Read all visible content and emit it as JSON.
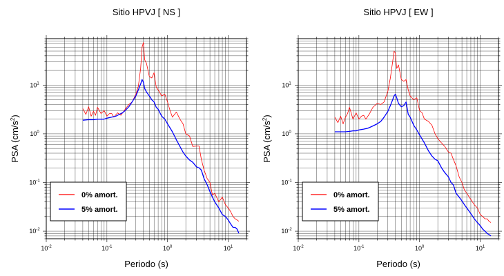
{
  "chart_data": [
    {
      "type": "line",
      "title": "Sitio HPVJ [ NS ]",
      "xlabel": "Periodo (s)",
      "ylabel_main": "PSA (cm/s",
      "ylabel_sup": "2",
      "ylabel_end": ")",
      "xscale": "log",
      "yscale": "log",
      "xlim": [
        0.01,
        20
      ],
      "ylim": [
        0.007,
        90
      ],
      "xticks": [
        {
          "base": "10",
          "exp": "-2",
          "v": 0.01
        },
        {
          "base": "10",
          "exp": "-1",
          "v": 0.1
        },
        {
          "base": "10",
          "exp": "0",
          "v": 1
        },
        {
          "base": "10",
          "exp": "1",
          "v": 10
        }
      ],
      "yticks": [
        {
          "base": "10",
          "exp": "-2",
          "v": 0.01
        },
        {
          "base": "10",
          "exp": "-1",
          "v": 0.1
        },
        {
          "base": "10",
          "exp": "0",
          "v": 1
        },
        {
          "base": "10",
          "exp": "1",
          "v": 10
        }
      ],
      "grid": true,
      "legend_position": "bottom-left",
      "series": [
        {
          "name": "0% amort.",
          "color": "#ff0000",
          "x": [
            0.04,
            0.045,
            0.05,
            0.055,
            0.06,
            0.065,
            0.07,
            0.08,
            0.09,
            0.1,
            0.11,
            0.12,
            0.13,
            0.15,
            0.17,
            0.2,
            0.23,
            0.26,
            0.3,
            0.33,
            0.36,
            0.38,
            0.4,
            0.42,
            0.45,
            0.5,
            0.55,
            0.6,
            0.65,
            0.7,
            0.8,
            0.9,
            1.0,
            1.1,
            1.2,
            1.4,
            1.6,
            1.8,
            2.0,
            2.3,
            2.6,
            3.0,
            3.3,
            3.6,
            4.0,
            4.5,
            5.0,
            5.5,
            6,
            7,
            8,
            9,
            10,
            11,
            12,
            13,
            14,
            15
          ],
          "y": [
            3.3,
            2.5,
            3.6,
            2.3,
            2.9,
            2.4,
            3.5,
            2.6,
            3.0,
            2.3,
            2.6,
            2.6,
            2.2,
            2.7,
            2.4,
            3.2,
            4.0,
            4.5,
            6.5,
            9.5,
            22,
            60,
            75,
            33,
            28,
            15,
            14,
            18,
            9,
            8,
            6,
            6.5,
            4.5,
            3.0,
            2.2,
            2.8,
            2.0,
            1.6,
            1.0,
            0.9,
            0.55,
            0.56,
            0.56,
            0.3,
            0.18,
            0.12,
            0.1,
            0.055,
            0.06,
            0.04,
            0.05,
            0.035,
            0.03,
            0.025,
            0.02,
            0.018,
            0.017,
            0.016
          ]
        },
        {
          "name": "5% amort.",
          "color": "#0000ff",
          "x": [
            0.04,
            0.05,
            0.06,
            0.07,
            0.08,
            0.09,
            0.1,
            0.12,
            0.14,
            0.16,
            0.18,
            0.2,
            0.23,
            0.26,
            0.3,
            0.33,
            0.36,
            0.38,
            0.4,
            0.42,
            0.45,
            0.5,
            0.55,
            0.6,
            0.65,
            0.7,
            0.8,
            0.9,
            1.0,
            1.2,
            1.4,
            1.6,
            1.8,
            2.0,
            2.3,
            2.6,
            3.0,
            3.3,
            3.6,
            4.0,
            4.5,
            5.0,
            5.5,
            6,
            7,
            8,
            9,
            10,
            11,
            12,
            13,
            14,
            15
          ],
          "y": [
            1.9,
            1.95,
            1.95,
            2.0,
            2.0,
            2.0,
            2.1,
            2.2,
            2.3,
            2.5,
            2.7,
            3.0,
            3.6,
            4.5,
            6.0,
            8.0,
            10.5,
            13,
            11.5,
            8.5,
            7.2,
            6.0,
            5.0,
            4.5,
            3.5,
            3.2,
            2.3,
            2.0,
            1.6,
            1.1,
            0.75,
            0.55,
            0.42,
            0.35,
            0.29,
            0.26,
            0.21,
            0.2,
            0.18,
            0.12,
            0.09,
            0.065,
            0.05,
            0.04,
            0.03,
            0.022,
            0.02,
            0.017,
            0.014,
            0.012,
            0.012,
            0.011,
            0.009
          ]
        }
      ]
    },
    {
      "type": "line",
      "title": "Sitio HPVJ [ EW ]",
      "xlabel": "Periodo (s)",
      "ylabel_main": "PSA (cm/s",
      "ylabel_sup": "2",
      "ylabel_end": ")",
      "xscale": "log",
      "yscale": "log",
      "xlim": [
        0.01,
        20
      ],
      "ylim": [
        0.007,
        90
      ],
      "xticks": [
        {
          "base": "10",
          "exp": "-2",
          "v": 0.01
        },
        {
          "base": "10",
          "exp": "-1",
          "v": 0.1
        },
        {
          "base": "10",
          "exp": "0",
          "v": 1
        },
        {
          "base": "10",
          "exp": "1",
          "v": 10
        }
      ],
      "yticks": [
        {
          "base": "10",
          "exp": "-2",
          "v": 0.01
        },
        {
          "base": "10",
          "exp": "-1",
          "v": 0.1
        },
        {
          "base": "10",
          "exp": "0",
          "v": 1
        },
        {
          "base": "10",
          "exp": "1",
          "v": 10
        }
      ],
      "grid": true,
      "legend_position": "bottom-left",
      "series": [
        {
          "name": "0% amort.",
          "color": "#ff0000",
          "x": [
            0.04,
            0.045,
            0.05,
            0.055,
            0.06,
            0.065,
            0.07,
            0.08,
            0.09,
            0.1,
            0.11,
            0.12,
            0.13,
            0.15,
            0.17,
            0.2,
            0.23,
            0.26,
            0.3,
            0.33,
            0.36,
            0.38,
            0.4,
            0.42,
            0.45,
            0.5,
            0.55,
            0.6,
            0.65,
            0.7,
            0.8,
            0.9,
            1.0,
            1.1,
            1.2,
            1.4,
            1.6,
            1.8,
            2.0,
            2.3,
            2.6,
            3.0,
            3.3,
            3.6,
            4.0,
            4.5,
            5.0,
            5.5,
            6,
            7,
            8,
            9,
            10,
            11,
            12,
            13,
            14,
            15
          ],
          "y": [
            2.2,
            1.7,
            2.3,
            1.6,
            2.2,
            2.6,
            3.5,
            2.0,
            2.7,
            2.0,
            2.3,
            2.4,
            2.0,
            2.6,
            3.5,
            4.2,
            4.0,
            4.5,
            7.5,
            14,
            30,
            50,
            45,
            22,
            26,
            13,
            12,
            13,
            8,
            6,
            5,
            5.5,
            3.0,
            2.7,
            2.0,
            1.8,
            1.5,
            1.0,
            0.8,
            0.65,
            0.55,
            0.42,
            0.4,
            0.3,
            0.22,
            0.13,
            0.1,
            0.07,
            0.06,
            0.045,
            0.035,
            0.03,
            0.022,
            0.02,
            0.018,
            0.018,
            0.016,
            0.015
          ]
        },
        {
          "name": "5% amort.",
          "color": "#0000ff",
          "x": [
            0.04,
            0.05,
            0.06,
            0.07,
            0.08,
            0.09,
            0.1,
            0.12,
            0.14,
            0.16,
            0.18,
            0.2,
            0.23,
            0.26,
            0.3,
            0.33,
            0.36,
            0.38,
            0.4,
            0.42,
            0.45,
            0.5,
            0.55,
            0.6,
            0.65,
            0.7,
            0.8,
            0.9,
            1.0,
            1.2,
            1.4,
            1.6,
            1.8,
            2.0,
            2.3,
            2.6,
            3.0,
            3.3,
            3.6,
            4.0,
            4.5,
            5.0,
            5.5,
            6,
            7,
            8,
            9,
            10,
            11,
            12,
            13,
            14,
            15
          ],
          "y": [
            1.1,
            1.1,
            1.1,
            1.12,
            1.15,
            1.15,
            1.2,
            1.25,
            1.3,
            1.4,
            1.5,
            1.6,
            1.8,
            2.2,
            2.9,
            3.8,
            5.0,
            6.0,
            6.5,
            5.5,
            4.2,
            3.6,
            3.8,
            4.5,
            2.5,
            2.2,
            1.5,
            1.2,
            0.95,
            0.65,
            0.45,
            0.35,
            0.3,
            0.28,
            0.2,
            0.16,
            0.13,
            0.1,
            0.09,
            0.06,
            0.05,
            0.042,
            0.035,
            0.03,
            0.023,
            0.018,
            0.015,
            0.013,
            0.011,
            0.01,
            0.009,
            0.0085,
            0.008
          ]
        }
      ]
    }
  ]
}
